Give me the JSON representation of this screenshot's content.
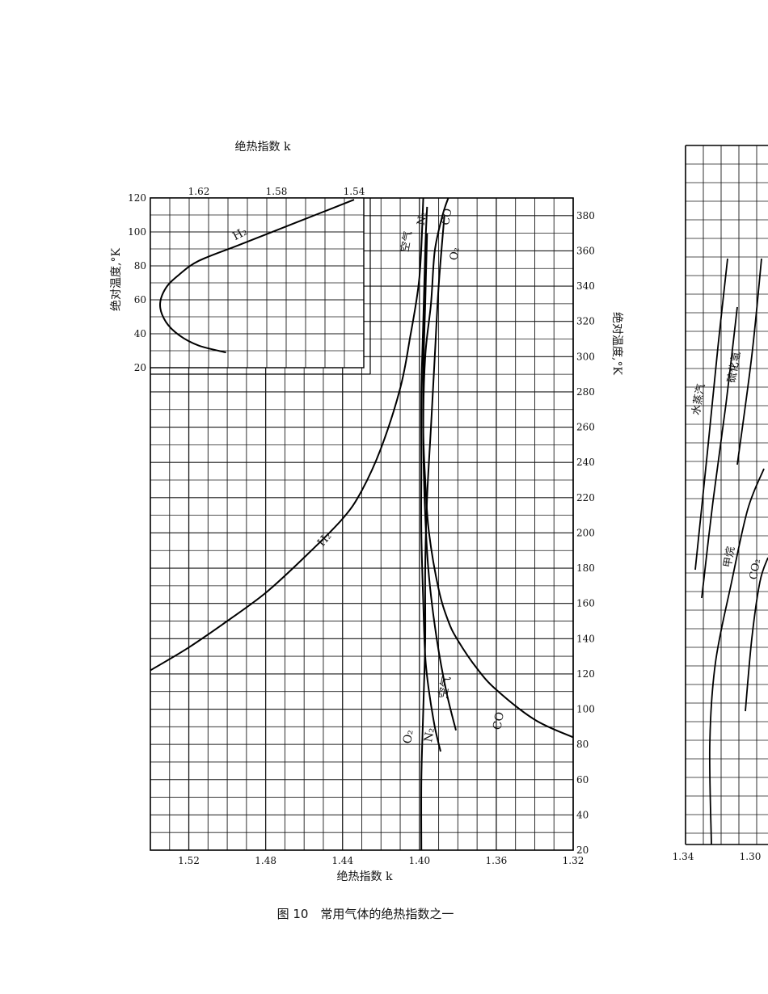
{
  "figure": {
    "caption": "图 10　常用气体的绝热指数之一"
  },
  "chart_data": [
    {
      "type": "line",
      "panel": "main",
      "xlabel": "绝热指数 k",
      "ylabel": "绝对温度,°K",
      "x_reversed": true,
      "xlim": [
        1.54,
        1.32
      ],
      "ylim": [
        20,
        390
      ],
      "xticks": [
        "1.52",
        "1.48",
        "1.44",
        "1.40",
        "1.36",
        "1.32"
      ],
      "yticks": [
        "20",
        "40",
        "60",
        "80",
        "100",
        "120",
        "140",
        "160",
        "180",
        "200",
        "220",
        "240",
        "260",
        "280",
        "300",
        "320",
        "340",
        "360",
        "380"
      ],
      "ytick_labels": [
        "20",
        "40",
        "60",
        "80",
        "100",
        "120",
        "140",
        "160",
        "180",
        "200",
        "220",
        "240",
        "260",
        "280",
        "300",
        "320",
        "340",
        "360",
        "380"
      ],
      "grid": true,
      "series": [
        {
          "name": "H₂",
          "label_at": [
            1.448,
            195
          ],
          "points": [
            [
              1.54,
              122
            ],
            [
              1.52,
              135
            ],
            [
              1.5,
              150
            ],
            [
              1.48,
              166
            ],
            [
              1.46,
              186
            ],
            [
              1.44,
              208
            ],
            [
              1.43,
              224
            ],
            [
              1.42,
              248
            ],
            [
              1.41,
              282
            ],
            [
              1.405,
              310
            ],
            [
              1.4,
              345
            ],
            [
              1.398,
              390
            ]
          ]
        },
        {
          "name": "O₂",
          "label_at": [
            1.404,
            84
          ],
          "points": [
            [
              1.399,
              20
            ],
            [
              1.399,
              60
            ],
            [
              1.398,
              100
            ],
            [
              1.397,
              140
            ],
            [
              1.397,
              180
            ],
            [
              1.396,
              220
            ],
            [
              1.394,
              260
            ],
            [
              1.392,
              300
            ],
            [
              1.39,
              340
            ],
            [
              1.387,
              380
            ]
          ]
        },
        {
          "name": "N₂",
          "label_at": [
            1.393,
            85
          ],
          "points": [
            [
              1.389,
              76
            ],
            [
              1.392,
              90
            ],
            [
              1.395,
              110
            ],
            [
              1.397,
              130
            ],
            [
              1.398,
              160
            ],
            [
              1.399,
              200
            ],
            [
              1.399,
              240
            ],
            [
              1.399,
              280
            ],
            [
              1.398,
              320
            ],
            [
              1.397,
              360
            ],
            [
              1.396,
              385
            ]
          ]
        },
        {
          "name": "空气",
          "label_at": [
            1.385,
            112
          ],
          "points": [
            [
              1.381,
              88
            ],
            [
              1.386,
              110
            ],
            [
              1.391,
              140
            ],
            [
              1.395,
              175
            ],
            [
              1.397,
              210
            ],
            [
              1.398,
              250
            ],
            [
              1.398,
              290
            ],
            [
              1.397,
              330
            ],
            [
              1.396,
              370
            ]
          ]
        },
        {
          "name": "CO",
          "label_at": [
            1.357,
            93
          ],
          "points": [
            [
              1.32,
              84
            ],
            [
              1.34,
              94
            ],
            [
              1.36,
              111
            ],
            [
              1.37,
              123
            ],
            [
              1.38,
              139
            ],
            [
              1.385,
              150
            ],
            [
              1.39,
              168
            ],
            [
              1.395,
              200
            ],
            [
              1.397,
              230
            ],
            [
              1.398,
              260
            ],
            [
              1.397,
              300
            ],
            [
              1.394,
              330
            ],
            [
              1.392,
              360
            ],
            [
              1.388,
              380
            ],
            [
              1.385,
              390
            ]
          ]
        }
      ],
      "top_labels": {
        "N₂": "N₂",
        "空气": "空气",
        "CO": "CO",
        "O₂": "O₂"
      }
    },
    {
      "type": "line",
      "panel": "inset",
      "xlabel": "绝热指数 k",
      "ylabel": "绝对温度,°K",
      "x_reversed": true,
      "xlim": [
        1.645,
        1.535
      ],
      "ylim": [
        20,
        120
      ],
      "xticks": [
        "1.62",
        "1.58",
        "1.54"
      ],
      "yticks": [
        "20",
        "40",
        "60",
        "80",
        "100",
        "120"
      ],
      "grid": true,
      "series": [
        {
          "name": "H₂",
          "label_at": [
            1.598,
            97
          ],
          "points": [
            [
              1.606,
              29
            ],
            [
              1.62,
              33
            ],
            [
              1.63,
              39
            ],
            [
              1.637,
              47
            ],
            [
              1.64,
              57
            ],
            [
              1.637,
              67
            ],
            [
              1.63,
              75
            ],
            [
              1.62,
              83
            ],
            [
              1.6,
              92
            ],
            [
              1.58,
              101
            ],
            [
              1.56,
              110
            ],
            [
              1.54,
              119
            ]
          ]
        }
      ]
    },
    {
      "type": "line",
      "panel": "right-partial",
      "xticks": [
        "1.34",
        "1.30"
      ],
      "grid": true,
      "series": [
        {
          "name": "水蒸汽"
        },
        {
          "name": "硫化氢"
        },
        {
          "name": "甲烷"
        },
        {
          "name": "CO₂"
        }
      ]
    }
  ]
}
